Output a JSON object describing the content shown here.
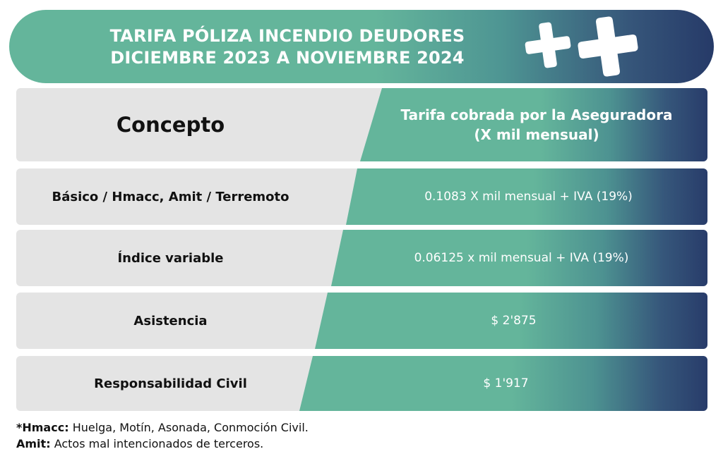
{
  "banner": {
    "title_line1": "TARIFA PÓLIZA INCENDIO DEUDORES",
    "title_line2": "DICIEMBRE 2023 A NOVIEMBRE 2024",
    "icons": [
      "plus-icon",
      "plus-icon"
    ]
  },
  "table": {
    "header": {
      "concept": "Concepto",
      "rate_line1": "Tarifa cobrada por la Aseguradora",
      "rate_line2": "(X mil mensual)"
    },
    "rows": [
      {
        "concept": "Básico / Hmacc, Amit / Terremoto",
        "rate": "0.1083 X mil mensual + IVA (19%)"
      },
      {
        "concept": "Índice variable",
        "rate": "0.06125 x mil mensual + IVA (19%)"
      },
      {
        "concept": "Asistencia",
        "rate": "$ 2'875"
      },
      {
        "concept": "Responsabilidad Civil",
        "rate": "$ 1'917"
      }
    ]
  },
  "footnotes": [
    {
      "term": "*Hmacc:",
      "definition": "Huelga, Motín, Asonada, Conmoción Civil."
    },
    {
      "term": "Amit:",
      "definition": "Actos mal intencionados de terceros."
    }
  ],
  "colors": {
    "teal": "#64b59b",
    "navy": "#263a68",
    "gray": "#e4e4e4"
  }
}
